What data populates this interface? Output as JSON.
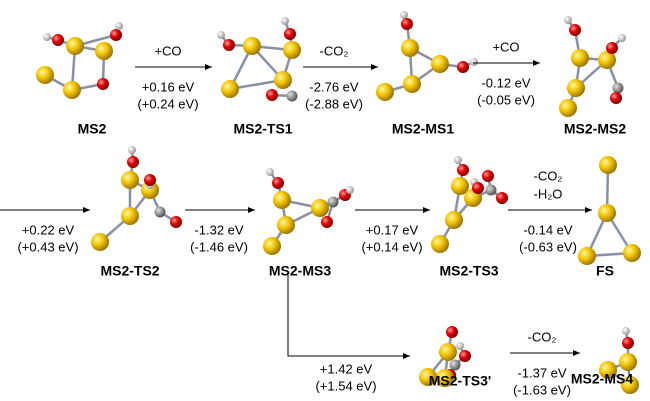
{
  "nodes": [
    {
      "label": "MS2"
    },
    {
      "label": "MS2-TS1"
    },
    {
      "label": "MS2-MS1"
    },
    {
      "label": "MS2-MS2"
    },
    {
      "label": "MS2-TS2"
    },
    {
      "label": "MS2-MS3"
    },
    {
      "label": "MS2-TS3"
    },
    {
      "label": "FS"
    },
    {
      "label": "MS2-TS3'"
    },
    {
      "label": "MS2-MS4"
    }
  ],
  "steps": [
    {
      "above": [
        "+CO"
      ],
      "below": [
        "+0.16 eV",
        "(+0.24 eV)"
      ]
    },
    {
      "above": [
        "-CO₂"
      ],
      "below": [
        "-2.76 eV",
        "(-2.88 eV)"
      ]
    },
    {
      "above": [
        "+CO"
      ],
      "below": [
        "-0.12 eV",
        "(-0.05 eV)"
      ]
    },
    {
      "above": [],
      "below": [
        "+0.22 eV",
        "(+0.43 eV)"
      ]
    },
    {
      "above": [],
      "below": [
        "-1.32 eV",
        "(-1.46 eV)"
      ]
    },
    {
      "above": [],
      "below": [
        "+0.17 eV",
        "(+0.14 eV)"
      ]
    },
    {
      "above": [
        "-CO₂",
        "-H₂O"
      ],
      "below": [
        "-0.14 eV",
        "(-0.63 eV)"
      ]
    },
    {
      "above": [],
      "below": [
        "+1.42 eV",
        "(+1.54 eV)"
      ]
    },
    {
      "above": [
        "-CO₂"
      ],
      "below": [
        "-1.37 eV",
        "(-1.63 eV)"
      ]
    }
  ]
}
